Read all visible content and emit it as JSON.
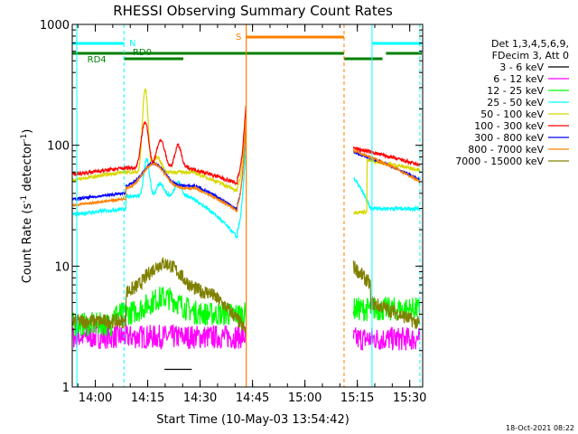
{
  "chart_data": {
    "type": "line",
    "title": "RHESSI Observing Summary Count Rates",
    "xlabel": "Start Time (10-May-03 13:54:42)",
    "ylabel_parts": [
      "Count Rate (s",
      "-1",
      " detector",
      "-1",
      ")"
    ],
    "yscale": "log",
    "ylim": [
      1,
      1000
    ],
    "xlim_minutes": [
      -1.3,
      99
    ],
    "x_ticks": [
      "14:00",
      "14:15",
      "14:30",
      "14:45",
      "15:00",
      "15:15",
      "15:30"
    ],
    "x_tick_minutes": [
      5.3,
      20.3,
      35.3,
      50.3,
      65.3,
      80.3,
      95.3
    ],
    "y_ticks": [
      "1",
      "10",
      "100",
      "1000"
    ],
    "y_tick_values": [
      1,
      10,
      100,
      1000
    ],
    "legend_header": [
      "Det 1,3,4,5,6,9,",
      "FDecim 3, Att 0"
    ],
    "legend_placement": "right",
    "series": [
      {
        "name": "3 - 6 keV",
        "color": "#000000"
      },
      {
        "name": "6 - 12 keV",
        "color": "#ff00ff"
      },
      {
        "name": "12 - 25 keV",
        "color": "#00ff00"
      },
      {
        "name": "25 - 50 keV",
        "color": "#00ffff"
      },
      {
        "name": "50 - 100 keV",
        "color": "#d8d800"
      },
      {
        "name": "100 - 300 keV",
        "color": "#ff0000"
      },
      {
        "name": "300 - 800 keV",
        "color": "#0000ff"
      },
      {
        "name": "800 - 7000 keV",
        "color": "#ff8000"
      },
      {
        "name": "7000 - 15000 keV",
        "color": "#808000"
      }
    ],
    "flags": [
      {
        "label": "N",
        "color": "#00ffff"
      },
      {
        "label": "RD0",
        "color": "#008000"
      },
      {
        "label": "RD4",
        "color": "#008000"
      },
      {
        "label": "S",
        "color": "#ff8000"
      }
    ],
    "footer": "18-Oct-2021 08:22"
  }
}
